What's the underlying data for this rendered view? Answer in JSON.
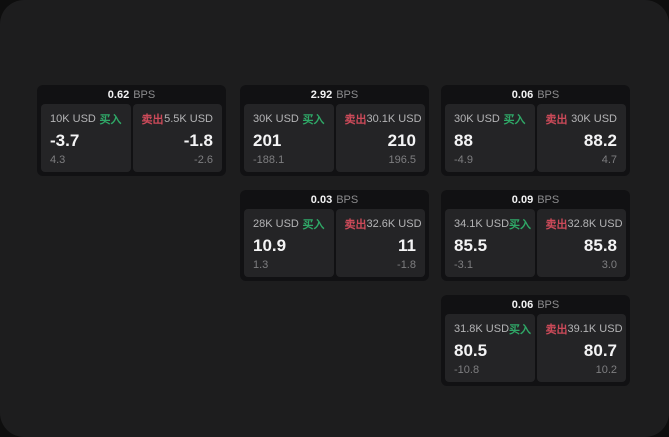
{
  "labels": {
    "buy": "买入",
    "sell": "卖出",
    "bps_unit": "BPS"
  },
  "colors": {
    "buy_green": "#2fa867",
    "sell_red": "#cc4a59",
    "page_background": "#1d1d1e",
    "card_background": "#111113",
    "panel_background": "#242426"
  },
  "cards": [
    {
      "bps": "0.62",
      "grid": {
        "row": 0,
        "col": 0
      },
      "buy": {
        "amount": "10K USD",
        "value": "-3.7",
        "delta": "4.3"
      },
      "sell": {
        "amount": "5.5K USD",
        "value": "-1.8",
        "delta": "-2.6"
      }
    },
    {
      "bps": "2.92",
      "grid": {
        "row": 0,
        "col": 1
      },
      "buy": {
        "amount": "30K USD",
        "value": "201",
        "delta": "-188.1"
      },
      "sell": {
        "amount": "30.1K USD",
        "value": "210",
        "delta": "196.5"
      }
    },
    {
      "bps": "0.06",
      "grid": {
        "row": 0,
        "col": 2
      },
      "buy": {
        "amount": "30K USD",
        "value": "88",
        "delta": "-4.9"
      },
      "sell": {
        "amount": "30K USD",
        "value": "88.2",
        "delta": "4.7"
      }
    },
    {
      "bps": "0.03",
      "grid": {
        "row": 1,
        "col": 1
      },
      "buy": {
        "amount": "28K USD",
        "value": "10.9",
        "delta": "1.3"
      },
      "sell": {
        "amount": "32.6K USD",
        "value": "11",
        "delta": "-1.8"
      }
    },
    {
      "bps": "0.09",
      "grid": {
        "row": 1,
        "col": 2
      },
      "buy": {
        "amount": "34.1K USD",
        "value": "85.5",
        "delta": "-3.1"
      },
      "sell": {
        "amount": "32.8K USD",
        "value": "85.8",
        "delta": "3.0"
      }
    },
    {
      "bps": "0.06",
      "grid": {
        "row": 2,
        "col": 2
      },
      "buy": {
        "amount": "31.8K USD",
        "value": "80.5",
        "delta": "-10.8"
      },
      "sell": {
        "amount": "39.1K USD",
        "value": "80.7",
        "delta": "10.2"
      }
    }
  ]
}
